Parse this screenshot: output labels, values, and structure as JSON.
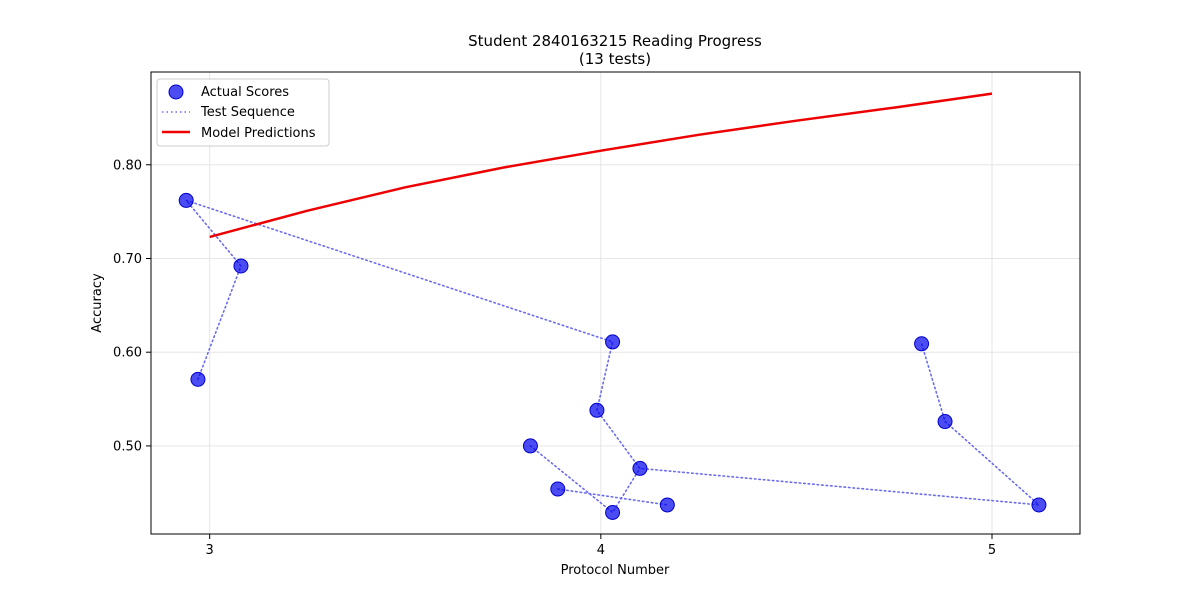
{
  "chart_data": {
    "type": "scatter",
    "title": "Student 2840163215 Reading Progress",
    "subtitle": "(13 tests)",
    "xlabel": "Protocol Number",
    "ylabel": "Accuracy",
    "xlim": [
      2.85,
      5.225
    ],
    "ylim": [
      0.406,
      0.899
    ],
    "x_ticks": [
      3,
      4,
      5
    ],
    "x_tick_labels": [
      "3",
      "4",
      "5"
    ],
    "y_ticks": [
      0.5,
      0.6,
      0.7,
      0.8
    ],
    "y_tick_labels": [
      "0.50",
      "0.60",
      "0.70",
      "0.80"
    ],
    "grid": true,
    "legend_position": "top-left",
    "series": [
      {
        "name": "Actual Scores",
        "kind": "points",
        "color": "#0000ee",
        "points": [
          [
            2.97,
            0.571
          ],
          [
            3.08,
            0.692
          ],
          [
            2.94,
            0.762
          ],
          [
            4.03,
            0.611
          ],
          [
            3.99,
            0.538
          ],
          [
            4.1,
            0.476
          ],
          [
            5.12,
            0.437
          ],
          [
            4.88,
            0.526
          ],
          [
            4.82,
            0.609
          ],
          [
            3.82,
            0.5
          ],
          [
            3.89,
            0.454
          ],
          [
            4.17,
            0.437
          ],
          [
            4.03,
            0.429
          ]
        ]
      },
      {
        "name": "Test Sequence",
        "kind": "dotted-line",
        "color": "#6b6bf0",
        "path": [
          [
            2.97,
            0.571
          ],
          [
            3.08,
            0.692
          ],
          [
            2.94,
            0.762
          ],
          [
            4.03,
            0.611
          ],
          [
            3.99,
            0.538
          ],
          [
            4.1,
            0.476
          ],
          [
            5.12,
            0.437
          ],
          [
            4.88,
            0.526
          ],
          [
            4.82,
            0.609
          ]
        ],
        "path2": [
          [
            3.82,
            0.5
          ],
          [
            4.03,
            0.429
          ],
          [
            4.1,
            0.476
          ]
        ],
        "path3": [
          [
            3.89,
            0.454
          ],
          [
            4.17,
            0.437
          ]
        ]
      },
      {
        "name": "Model Predictions",
        "kind": "line",
        "color": "#ee0000",
        "x": [
          3.0,
          3.25,
          3.5,
          3.75,
          4.0,
          4.25,
          4.5,
          4.75,
          5.0
        ],
        "y": [
          0.723,
          0.751,
          0.776,
          0.797,
          0.815,
          0.832,
          0.847,
          0.861,
          0.876
        ]
      }
    ]
  }
}
